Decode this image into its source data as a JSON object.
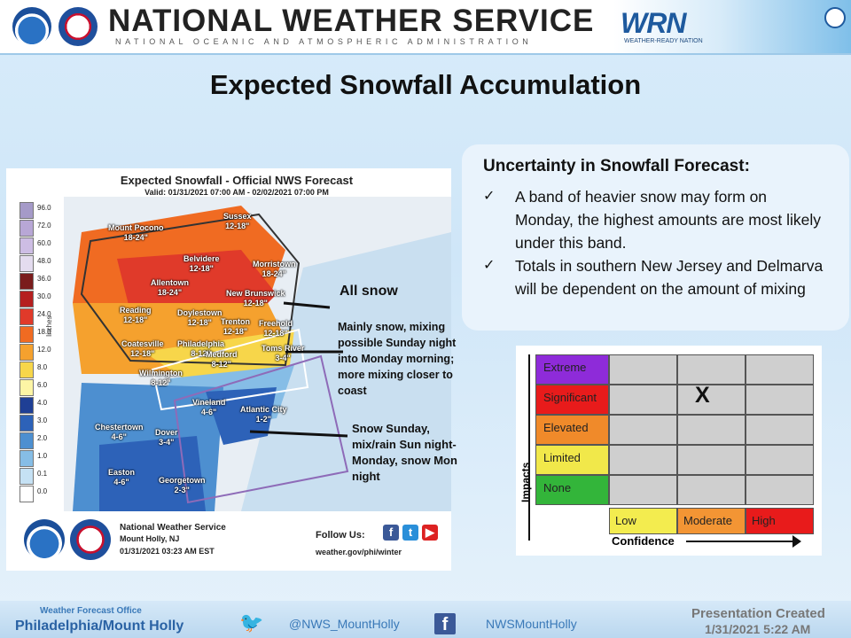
{
  "header": {
    "agency_title": "NATIONAL WEATHER SERVICE",
    "agency_subtitle": "NATIONAL OCEANIC AND ATMOSPHERIC ADMINISTRATION",
    "wrn_logo": "WRN",
    "wrn_subtitle": "WEATHER-READY NATION"
  },
  "page_title": "Expected Snowfall Accumulation",
  "map": {
    "title": "Expected Snowfall - Official NWS Forecast",
    "valid": "Valid: 01/31/2021 07:00 AM - 02/02/2021 07:00 PM",
    "legend_unit": "Inches",
    "legend": [
      {
        "label": "96.0",
        "color": "#a59ac8"
      },
      {
        "label": "72.0",
        "color": "#b8a7d6"
      },
      {
        "label": "60.0",
        "color": "#cdbde4"
      },
      {
        "label": "48.0",
        "color": "#e4dcef"
      },
      {
        "label": "36.0",
        "color": "#7a1c1c"
      },
      {
        "label": "30.0",
        "color": "#b51f1f"
      },
      {
        "label": "24.0",
        "color": "#e03a2a"
      },
      {
        "label": "18.0",
        "color": "#f06b22"
      },
      {
        "label": "12.0",
        "color": "#f5a12e"
      },
      {
        "label": "8.0",
        "color": "#f7d64a"
      },
      {
        "label": "6.0",
        "color": "#fdf5a5"
      },
      {
        "label": "4.0",
        "color": "#1f3f95"
      },
      {
        "label": "3.0",
        "color": "#2d62b8"
      },
      {
        "label": "2.0",
        "color": "#4d8fd0"
      },
      {
        "label": "1.0",
        "color": "#86bde6"
      },
      {
        "label": "0.1",
        "color": "#c5e1f4"
      },
      {
        "label": "0.0",
        "color": "#ffffff"
      }
    ],
    "cities": [
      {
        "name": "Mount Pocono",
        "value": "18-24\""
      },
      {
        "name": "Sussex",
        "value": "12-18\""
      },
      {
        "name": "Belvidere",
        "value": "12-18\""
      },
      {
        "name": "Morristown",
        "value": "18-24\""
      },
      {
        "name": "Allentown",
        "value": "18-24\""
      },
      {
        "name": "New Brunswick",
        "value": "12-18\""
      },
      {
        "name": "Reading",
        "value": "12-18\""
      },
      {
        "name": "Doylestown",
        "value": "12-18\""
      },
      {
        "name": "Trenton",
        "value": "12-18\""
      },
      {
        "name": "Freehold",
        "value": "12-18\""
      },
      {
        "name": "Coatesville",
        "value": "12-18\""
      },
      {
        "name": "Philadelphia",
        "value": "8-12\""
      },
      {
        "name": "Medford",
        "value": "8-12\""
      },
      {
        "name": "Toms River",
        "value": "3-4\""
      },
      {
        "name": "Wilmington",
        "value": "8-12\""
      },
      {
        "name": "Vineland",
        "value": "4-6\""
      },
      {
        "name": "Atlantic City",
        "value": "1-2\""
      },
      {
        "name": "Chestertown",
        "value": "4-6\""
      },
      {
        "name": "Dover",
        "value": "3-4\""
      },
      {
        "name": "Easton",
        "value": "4-6\""
      },
      {
        "name": "Georgetown",
        "value": "2-3\""
      }
    ],
    "annotations": {
      "all_snow": "All snow",
      "mixing": "Mainly snow, mixing possible Sunday night into Monday morning; more mixing closer to coast",
      "south": "Snow Sunday, mix/rain Sun night-Monday, snow Mon night"
    },
    "footer": {
      "office": "National Weather Service",
      "location": "Mount Holly, NJ",
      "timestamp": "01/31/2021 03:23 AM EST",
      "follow": "Follow Us:",
      "url": "weather.gov/phi/winter"
    }
  },
  "uncertainty": {
    "title": "Uncertainty in Snowfall Forecast:",
    "items": [
      "A band of heavier snow may form on Monday, the highest amounts are most likely under this band.",
      "Totals in southern New Jersey and Delmarva will be dependent on the amount of mixing"
    ]
  },
  "matrix": {
    "impact_levels": [
      {
        "label": "Extreme",
        "color": "#8e2bd9"
      },
      {
        "label": "Significant",
        "color": "#e81b1b"
      },
      {
        "label": "Elevated",
        "color": "#f08a2a"
      },
      {
        "label": "Limited",
        "color": "#f1e84a"
      },
      {
        "label": "None",
        "color": "#33b53a"
      }
    ],
    "confidence_levels": [
      {
        "label": "Low",
        "color": "#f3ec4f"
      },
      {
        "label": "Moderate",
        "color": "#f39534"
      },
      {
        "label": "High",
        "color": "#e81b1b"
      }
    ],
    "marker": "X",
    "impacts_label": "Impacts",
    "confidence_label": "Confidence"
  },
  "bottom": {
    "wfo_label": "Weather Forecast Office",
    "wfo_name": "Philadelphia/Mount Holly",
    "twitter": "@NWS_MountHolly",
    "facebook": "NWSMountHolly",
    "presentation_label": "Presentation Created",
    "presentation_date": "1/31/2021 5:22 AM"
  }
}
